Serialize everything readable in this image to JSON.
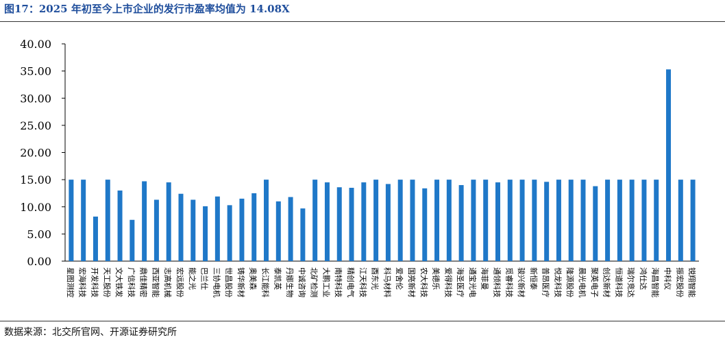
{
  "title": "图17：2025 年初至今上市企业的发行市盈率均值为 14.08X",
  "source": "数据来源：北交所官网、开源证券研究所",
  "colors": {
    "bar": "#1f78c8",
    "title": "#1f4e9c",
    "axis": "#000000"
  },
  "chart_data": {
    "type": "bar",
    "title": "",
    "xlabel": "",
    "ylabel": "",
    "ylim": [
      0,
      40
    ],
    "yticks": [
      "0.00",
      "5.00",
      "10.00",
      "15.00",
      "20.00",
      "25.00",
      "30.00",
      "35.00",
      "40.00"
    ],
    "grid": false,
    "legend": "none",
    "categories": [
      "星图测控",
      "宏海科技",
      "开发科技",
      "天工股份",
      "文大铁发",
      "广信科技",
      "鼎佳精密",
      "西亚智能",
      "志高机械",
      "宏远股份",
      "能之光",
      "巴兰仕",
      "三协电机",
      "世昌股份",
      "铸华新材",
      "奥美森",
      "长江能科",
      "泰凯英",
      "丹娜生物",
      "中诚咨询",
      "北矿检测",
      "大鹏工业",
      "南特科技",
      "精创电气",
      "江天科技",
      "酉东光",
      "科马材料",
      "爱舍伦",
      "国亮新材",
      "农大科技",
      "美德乐",
      "爱得科技",
      "海圣医疗",
      "通宝光电",
      "海菲曼",
      "通领科技",
      "觅睿科技",
      "骏兴新材",
      "新恒泰",
      "普昂医疗",
      "悦龙科技",
      "隆源股份",
      "晨光电机",
      "聚英电子",
      "创达新材",
      "恒道科技",
      "瑞尔竞达",
      "鸿仕达",
      "海昌智能",
      "中科仪",
      "振宏股份",
      "锐翔智能"
    ],
    "values": [
      15.0,
      15.0,
      8.2,
      15.0,
      13.0,
      7.6,
      14.7,
      11.3,
      14.5,
      12.4,
      11.3,
      10.1,
      11.9,
      10.3,
      11.5,
      12.5,
      15.0,
      11.0,
      11.8,
      9.7,
      15.0,
      14.5,
      13.6,
      13.5,
      14.5,
      15.0,
      14.2,
      15.0,
      15.0,
      13.4,
      15.0,
      15.0,
      14.0,
      15.0,
      15.0,
      14.5,
      15.0,
      15.0,
      15.0,
      14.6,
      15.0,
      15.0,
      15.0,
      13.8,
      15.0,
      15.0,
      15.0,
      15.0,
      15.0,
      35.3,
      15.0,
      15.0
    ]
  }
}
